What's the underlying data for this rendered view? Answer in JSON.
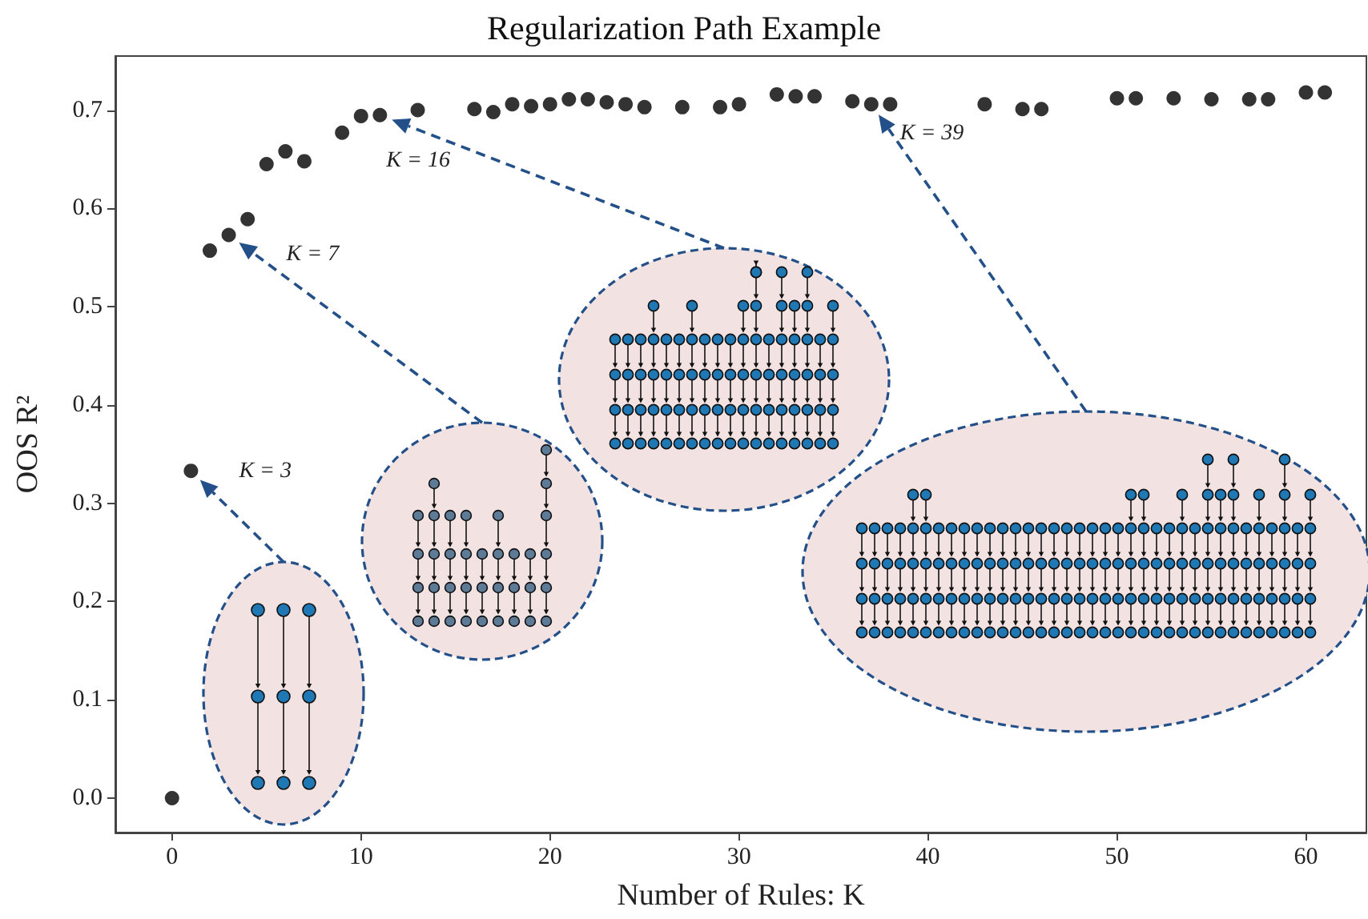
{
  "chart_data": {
    "type": "scatter",
    "title": "Regularization Path Example",
    "xlabel": "Number of Rules: K",
    "ylabel": "OOS R²",
    "x": [
      0,
      1,
      2,
      3,
      4,
      5,
      6,
      7,
      9,
      10,
      11,
      13,
      16,
      17,
      18,
      19,
      20,
      21,
      22,
      23,
      24,
      25,
      27,
      29,
      30,
      32,
      33,
      34,
      36,
      37,
      38,
      43,
      45,
      46,
      50,
      51,
      53,
      55,
      57,
      58,
      60,
      61
    ],
    "series": [
      {
        "color": "#000000",
        "values": [
          0.0,
          0.333,
          0.557,
          0.573,
          0.589,
          0.645,
          0.658,
          0.648,
          0.677,
          0.694,
          0.695,
          0.7,
          0.701,
          0.698,
          0.706,
          0.704,
          0.706,
          0.711,
          0.711,
          0.708,
          0.706,
          0.703,
          0.703,
          0.703,
          0.706,
          0.716,
          0.714,
          0.714,
          0.709,
          0.706,
          0.706,
          0.706,
          0.701,
          0.701,
          0.712,
          0.712,
          0.712,
          0.711,
          0.711,
          0.711,
          0.718,
          0.718
        ]
      }
    ],
    "xlim": [
      -3,
      63.2
    ],
    "ylim": [
      -0.035,
      0.755
    ],
    "xticks": [
      0,
      10,
      20,
      30,
      40,
      50,
      60
    ],
    "yticks": [
      {
        "value": 0,
        "label": "0.0"
      },
      {
        "value": 0.1,
        "label": "0.1"
      },
      {
        "value": 0.2,
        "label": "0.2"
      },
      {
        "value": 0.3,
        "label": "0.3"
      },
      {
        "value": 0.4,
        "label": "0.4"
      },
      {
        "value": 0.5,
        "label": "0.5"
      },
      {
        "value": 0.6,
        "label": "0.6"
      },
      {
        "value": 0.7,
        "label": "0.7"
      }
    ],
    "marker": "circle",
    "annotations": [
      {
        "text": "K = 3",
        "x": 1,
        "y": 0.333
      },
      {
        "text": "K = 7",
        "x": 3,
        "y": 0.573
      },
      {
        "text": "K = 16",
        "x": 11,
        "y": 0.695
      },
      {
        "text": "K = 39",
        "x": 37,
        "y": 0.706
      }
    ]
  }
}
